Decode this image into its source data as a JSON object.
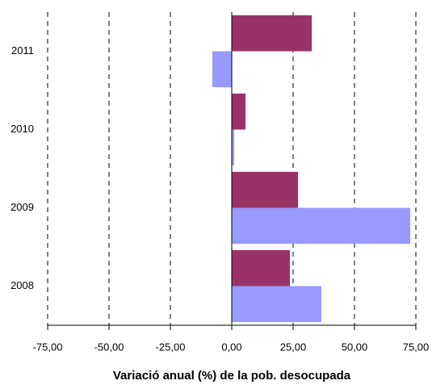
{
  "chart_data": {
    "type": "barh",
    "x_label": "Variació anual (%) de la pob. desocupada",
    "categories": [
      "2008",
      "2009",
      "2010",
      "2011"
    ],
    "series": [
      {
        "color": "#993366",
        "values": [
          23.7,
          27.0,
          5.6,
          32.6
        ]
      },
      {
        "color": "#9999ff",
        "values": [
          36.5,
          72.7,
          1.0,
          -7.9
        ]
      }
    ],
    "xlim": [
      -75,
      75
    ],
    "xticks": [
      {
        "value": -75,
        "label": "-75,00"
      },
      {
        "value": -50,
        "label": "-50,00"
      },
      {
        "value": -25,
        "label": "-25,00"
      },
      {
        "value": 0,
        "label": "0,00"
      },
      {
        "value": 25,
        "label": "25,00"
      },
      {
        "value": 50,
        "label": "50,00"
      },
      {
        "value": 75,
        "label": "75,00"
      }
    ],
    "grid": true
  }
}
